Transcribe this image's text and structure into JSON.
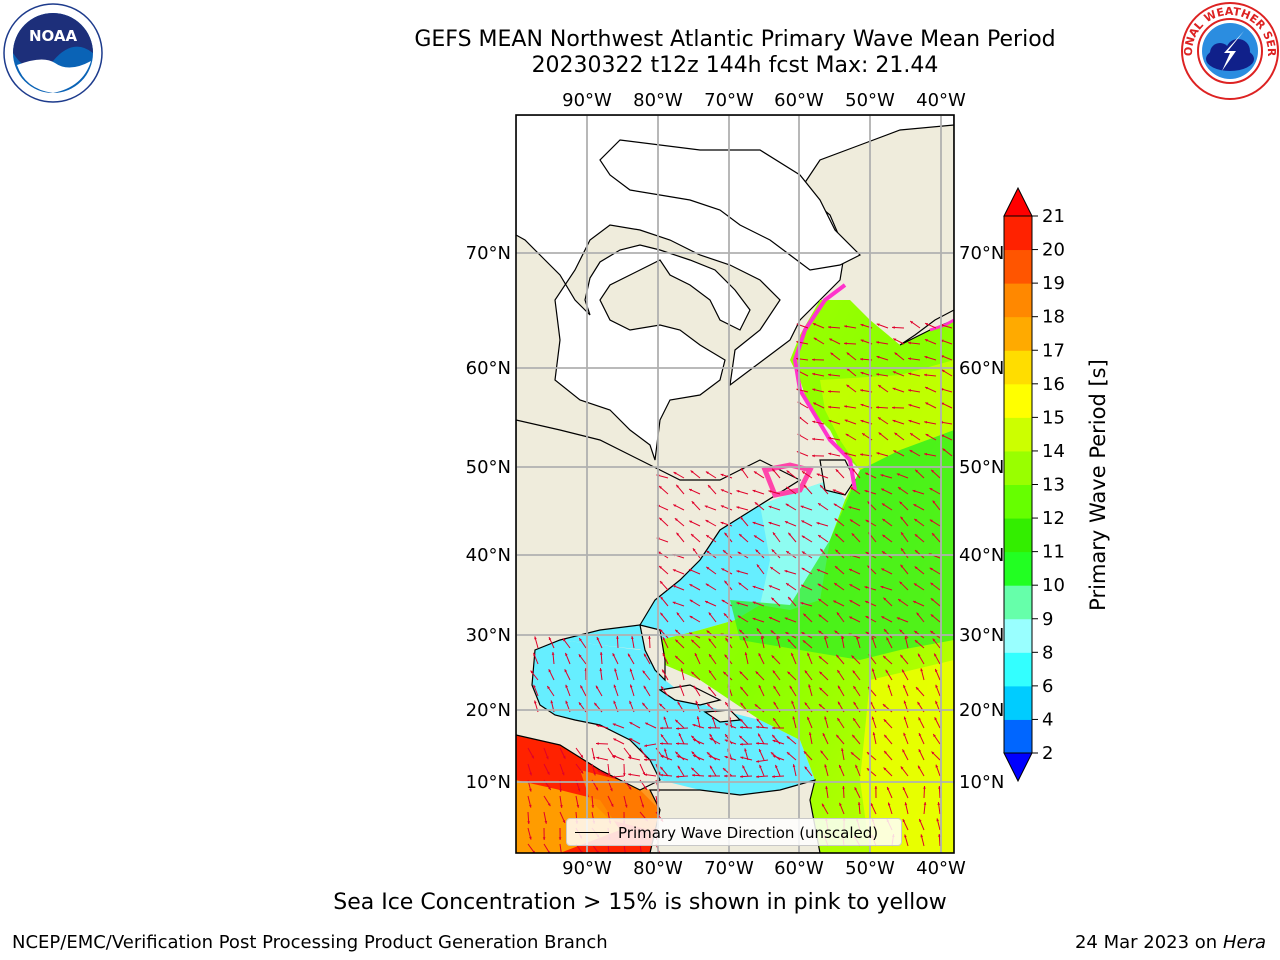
{
  "header": {
    "title_line1": "GEFS MEAN Northwest Atlantic Primary Wave Mean Period",
    "title_line2": "20230322 t12z 144h fcst   Max: 21.44"
  },
  "logos": {
    "left": "noaa-logo",
    "right": "national-weather-service-logo"
  },
  "map": {
    "lon_labels": [
      "90°W",
      "80°W",
      "70°W",
      "60°W",
      "50°W",
      "40°W"
    ],
    "lat_labels": [
      "70°N",
      "60°N",
      "50°N",
      "40°N",
      "30°N",
      "20°N",
      "10°N"
    ],
    "legend_label": "Primary Wave Direction (unscaled)",
    "colors": {
      "land": "#efecdc",
      "ice_free_land": "#ffffff",
      "grid": "#b0b0b0",
      "arrow": "#e0002a",
      "ice": "#ff33cc"
    }
  },
  "colorbar": {
    "title": "Primary Wave Period [s]",
    "ticks": [
      "2",
      "4",
      "6",
      "8",
      "9",
      "10",
      "11",
      "12",
      "13",
      "14",
      "15",
      "16",
      "17",
      "18",
      "19",
      "20",
      "21"
    ],
    "colors": [
      "#0000ff",
      "#0066ff",
      "#00ccff",
      "#33ffff",
      "#99ffff",
      "#66ffaa",
      "#22ff22",
      "#33ee00",
      "#66ff00",
      "#99ff00",
      "#ccff00",
      "#ffff00",
      "#ffdd00",
      "#ffaa00",
      "#ff8800",
      "#ff5500",
      "#ff2200",
      "#ff0000"
    ]
  },
  "footer": {
    "note": "Sea Ice Concentration > 15% is shown in pink to yellow",
    "credit_left": "NCEP/EMC/Verification Post Processing Product Generation Branch",
    "credit_date": "24 Mar 2023 on",
    "credit_host": "Hera"
  }
}
